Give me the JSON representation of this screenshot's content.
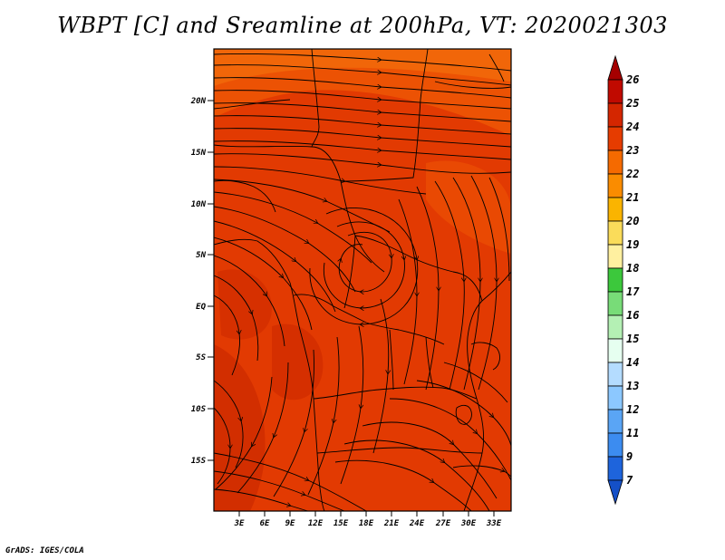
{
  "title": "WBPT [C] and Sreamline at 200hPa, VT: 2020021303",
  "credit": "GrADS: IGES/COLA",
  "map": {
    "lat_ticks": [
      "20N",
      "15N",
      "10N",
      "5N",
      "EQ",
      "5S",
      "10S",
      "15S"
    ],
    "lon_ticks": [
      "3E",
      "6E",
      "9E",
      "12E",
      "15E",
      "18E",
      "21E",
      "24E",
      "27E",
      "30E",
      "33E"
    ]
  },
  "colorbar": {
    "labels": [
      "26",
      "25",
      "24",
      "23",
      "22",
      "21",
      "20",
      "19",
      "18",
      "17",
      "16",
      "15",
      "14",
      "13",
      "12",
      "11",
      "9",
      "7"
    ],
    "colors": [
      "#a50000",
      "#c00a00",
      "#d42600",
      "#e63c00",
      "#f56a00",
      "#fa8c00",
      "#fab400",
      "#fadc5a",
      "#fff0a0",
      "#3cc83c",
      "#78dc78",
      "#b4f0b4",
      "#e6fff0",
      "#b4dcff",
      "#8cc8ff",
      "#5aa5f5",
      "#3c8cf0",
      "#1e64dc",
      "#1450c8"
    ]
  }
}
